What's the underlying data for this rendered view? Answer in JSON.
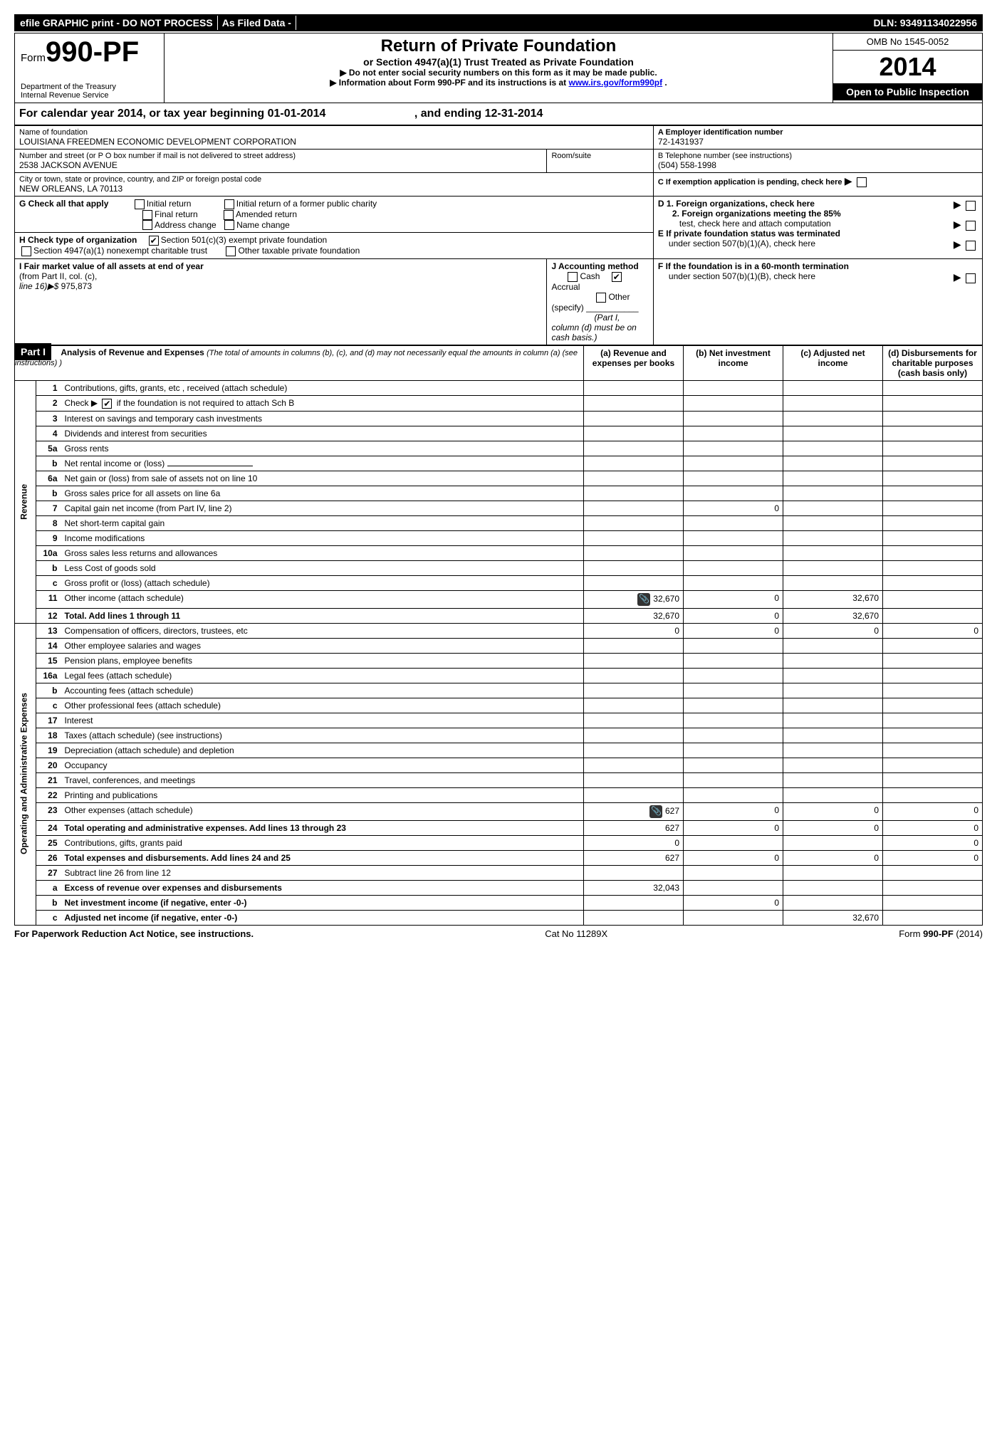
{
  "top": {
    "efile": "efile GRAPHIC print - DO NOT PROCESS",
    "asfiled": "As Filed Data -",
    "dln_label": "DLN:",
    "dln": "93491134022956"
  },
  "hdr": {
    "form_prefix": "Form",
    "form_num": "990-PF",
    "dept": "Department of the Treasury",
    "irs": "Internal Revenue Service",
    "title": "Return of Private Foundation",
    "sub": "or Section 4947(a)(1) Trust Treated as Private Foundation",
    "warn": "▶ Do not enter social security numbers on this form as it may be made public.",
    "info": "▶ Information about Form 990-PF and its instructions is at",
    "info_link": "www.irs.gov/form990pf",
    "omb": "OMB No 1545-0052",
    "year": "2014",
    "inspect": "Open to Public Inspection"
  },
  "cal": {
    "prefix": "For calendar year 2014, or tax year beginning",
    "begin": "01-01-2014",
    "mid": ", and ending",
    "end": "12-31-2014"
  },
  "id": {
    "name_label": "Name of foundation",
    "name": "LOUISIANA FREEDMEN ECONOMIC DEVELOPMENT CORPORATION",
    "ein_label": "A Employer identification number",
    "ein": "72-1431937",
    "addr_label": "Number and street (or P O  box number if mail is not delivered to street address)",
    "addr": "2538 JACKSON AVENUE",
    "room_label": "Room/suite",
    "tel_label": "B Telephone number (see instructions)",
    "tel": "(504) 558-1998",
    "city_label": "City or town, state or province, country, and ZIP or foreign postal code",
    "city": "NEW ORLEANS, LA  70113",
    "c_label": "C  If exemption application is pending, check here"
  },
  "g": {
    "label": "G Check all that apply",
    "initial": "Initial return",
    "initial_former": "Initial return of a former public charity",
    "final": "Final return",
    "amended": "Amended return",
    "addr_change": "Address change",
    "name_change": "Name change"
  },
  "h": {
    "label": "H Check type of organization",
    "opt1": "Section 501(c)(3) exempt private foundation",
    "opt2": "Section 4947(a)(1) nonexempt charitable trust",
    "opt3": "Other taxable private foundation"
  },
  "d": {
    "d1": "D 1.  Foreign organizations, check here",
    "d2a": "2.  Foreign organizations meeting the 85%",
    "d2b": "test, check here and attach computation",
    "e1": "E  If private foundation status was terminated",
    "e2": "under section 507(b)(1)(A), check here"
  },
  "i": {
    "label": "I Fair market value of all assets at end of year",
    "from": "(from Part II, col. (c),",
    "line": "line 16)▶$",
    "val": "975,873"
  },
  "j": {
    "label": "J Accounting method",
    "cash": "Cash",
    "accrual": "Accrual",
    "other": "Other (specify)",
    "note": "(Part I, column (d) must be on cash basis.)"
  },
  "f": {
    "f1": "F  If the foundation is in a 60-month termination",
    "f2": "under section 507(b)(1)(B), check here"
  },
  "p1": {
    "label": "Part I",
    "title": "Analysis of Revenue and Expenses",
    "sub": "(The total of amounts in columns (b), (c), and (d) may not necessarily equal the amounts in column (a) (see instructions) )",
    "ca": "(a) Revenue and expenses per books",
    "cb": "(b) Net investment income",
    "cc": "(c) Adjusted net income",
    "cd": "(d) Disbursements for charitable purposes (cash basis only)"
  },
  "rev_label": "Revenue",
  "exp_label": "Operating and Administrative Expenses",
  "rows": [
    {
      "n": "1",
      "d": "Contributions, gifts, grants, etc , received (attach schedule)"
    },
    {
      "n": "2",
      "d": "Check ▶",
      "d2": "if the foundation is not required to attach Sch B",
      "chk": true
    },
    {
      "n": "3",
      "d": "Interest on savings and temporary cash investments"
    },
    {
      "n": "4",
      "d": "Dividends and interest from securities"
    },
    {
      "n": "5a",
      "d": "Gross rents"
    },
    {
      "n": "b",
      "d": "Net rental income or (loss)",
      "blank": true
    },
    {
      "n": "6a",
      "d": "Net gain or (loss) from sale of assets not on line 10"
    },
    {
      "n": "b",
      "d": "Gross sales price for all assets on line 6a"
    },
    {
      "n": "7",
      "d": "Capital gain net income (from Part IV, line 2)",
      "b": "0"
    },
    {
      "n": "8",
      "d": "Net short-term capital gain"
    },
    {
      "n": "9",
      "d": "Income modifications"
    },
    {
      "n": "10a",
      "d": "Gross sales less returns and allowances"
    },
    {
      "n": "b",
      "d": "Less  Cost of goods sold"
    },
    {
      "n": "c",
      "d": "Gross profit or (loss) (attach schedule)"
    },
    {
      "n": "11",
      "d": "Other income (attach schedule)",
      "clip": true,
      "a": "32,670",
      "b": "0",
      "c": "32,670"
    },
    {
      "n": "12",
      "d": "Total. Add lines 1 through 11",
      "bold": true,
      "a": "32,670",
      "b": "0",
      "c": "32,670"
    },
    {
      "n": "13",
      "d": "Compensation of officers, directors, trustees, etc",
      "a": "0",
      "b": "0",
      "c": "0",
      "dd": "0"
    },
    {
      "n": "14",
      "d": "Other employee salaries and wages"
    },
    {
      "n": "15",
      "d": "Pension plans, employee benefits"
    },
    {
      "n": "16a",
      "d": "Legal fees (attach schedule)"
    },
    {
      "n": "b",
      "d": "Accounting fees (attach schedule)"
    },
    {
      "n": "c",
      "d": "Other professional fees (attach schedule)"
    },
    {
      "n": "17",
      "d": "Interest"
    },
    {
      "n": "18",
      "d": "Taxes (attach schedule) (see instructions)"
    },
    {
      "n": "19",
      "d": "Depreciation (attach schedule) and depletion"
    },
    {
      "n": "20",
      "d": "Occupancy"
    },
    {
      "n": "21",
      "d": "Travel, conferences, and meetings"
    },
    {
      "n": "22",
      "d": "Printing and publications"
    },
    {
      "n": "23",
      "d": "Other expenses (attach schedule)",
      "clip": true,
      "a": "627",
      "b": "0",
      "c": "0",
      "dd": "0"
    },
    {
      "n": "24",
      "d": "Total operating and administrative expenses. Add lines 13 through 23",
      "bold": true,
      "a": "627",
      "b": "0",
      "c": "0",
      "dd": "0"
    },
    {
      "n": "25",
      "d": "Contributions, gifts, grants paid",
      "a": "0",
      "dd": "0"
    },
    {
      "n": "26",
      "d": "Total expenses and disbursements. Add lines 24 and 25",
      "bold": true,
      "a": "627",
      "b": "0",
      "c": "0",
      "dd": "0"
    },
    {
      "n": "27",
      "d": "Subtract line 26 from line 12"
    },
    {
      "n": "a",
      "d": "Excess of revenue over expenses and disbursements",
      "bold": true,
      "a": "32,043"
    },
    {
      "n": "b",
      "d": "Net investment income (if negative, enter -0-)",
      "bold": true,
      "b": "0"
    },
    {
      "n": "c",
      "d": "Adjusted net income (if negative, enter -0-)",
      "bold": true,
      "c": "32,670"
    }
  ],
  "footer": {
    "left": "For Paperwork Reduction Act Notice, see instructions.",
    "mid": "Cat No 11289X",
    "right": "Form 990-PF (2014)"
  }
}
